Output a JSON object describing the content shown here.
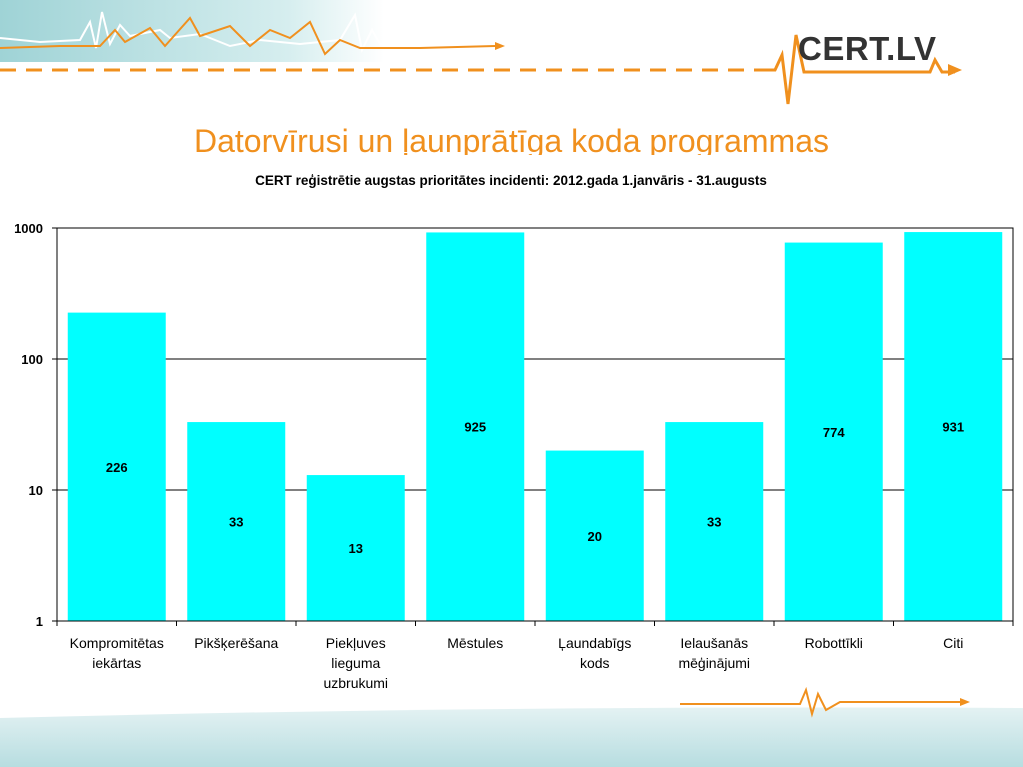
{
  "slide": {
    "title": "Datorvīrusi un ļaunprātīga koda programmas",
    "logo_text": "CERT.LV"
  },
  "colors": {
    "bar": "#00FFFF",
    "accent": "#F0901E",
    "grid": "#000000"
  },
  "chart_data": {
    "type": "bar",
    "title": "CERT reģistrētie augstas prioritātes incidenti: 2012.gada 1.janvāris - 31.augusts",
    "categories": [
      [
        "Kompromitētas",
        "iekārtas"
      ],
      [
        "Pikšķerēšana"
      ],
      [
        "Piekļuves",
        "lieguma",
        "uzbrukumi"
      ],
      [
        "Mēstules"
      ],
      [
        "Ļaundabīgs",
        "kods"
      ],
      [
        "Ielaušanās",
        "mēģinājumi"
      ],
      [
        "Robottīkli"
      ],
      [
        "Citi"
      ]
    ],
    "values": [
      226,
      33,
      13,
      925,
      20,
      33,
      774,
      931
    ],
    "data_labels": [
      "226",
      "33",
      "13",
      "925",
      "20",
      "33",
      "774",
      "931"
    ],
    "y_scale": "log",
    "ylim": [
      1,
      1000
    ],
    "y_ticks": [
      "1",
      "10",
      "100",
      "1000"
    ],
    "grid": true,
    "legend": "none"
  }
}
